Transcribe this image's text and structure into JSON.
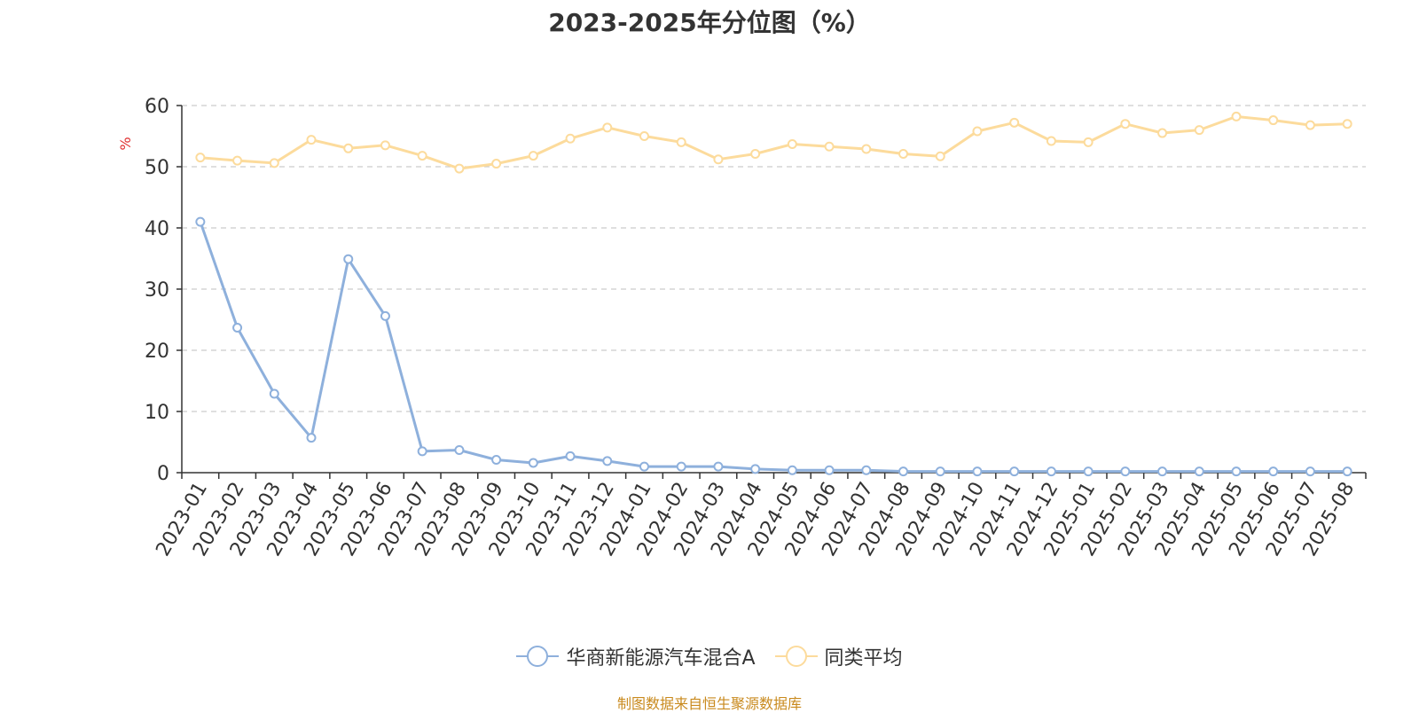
{
  "chart_data": {
    "type": "line",
    "title": "2023-2025年分位图（%）",
    "ylabel": "%",
    "ylim": [
      0,
      60
    ],
    "yticks": [
      0,
      10,
      20,
      30,
      40,
      50,
      60
    ],
    "grid": true,
    "legend_position": "bottom",
    "categories": [
      "2023-01",
      "2023-02",
      "2023-03",
      "2023-04",
      "2023-05",
      "2023-06",
      "2023-07",
      "2023-08",
      "2023-09",
      "2023-10",
      "2023-11",
      "2023-12",
      "2024-01",
      "2024-02",
      "2024-03",
      "2024-04",
      "2024-05",
      "2024-06",
      "2024-07",
      "2024-08",
      "2024-09",
      "2024-10",
      "2024-11",
      "2024-12",
      "2025-01",
      "2025-02",
      "2025-03",
      "2025-04",
      "2025-05",
      "2025-06",
      "2025-07",
      "2025-08"
    ],
    "series": [
      {
        "name": "华商新能源汽车混合A",
        "color": "#8eb0dc",
        "values": [
          41.0,
          23.7,
          12.9,
          5.7,
          34.9,
          25.6,
          3.5,
          3.7,
          2.1,
          1.6,
          2.7,
          1.9,
          1.0,
          1.0,
          1.0,
          0.6,
          0.4,
          0.4,
          0.4,
          0.2,
          0.2,
          0.2,
          0.2,
          0.2,
          0.2,
          0.2,
          0.2,
          0.2,
          0.2,
          0.2,
          0.2,
          0.2
        ]
      },
      {
        "name": "同类平均",
        "color": "#fcdb9c",
        "values": [
          51.5,
          51.0,
          50.6,
          54.4,
          53.0,
          53.5,
          51.8,
          49.7,
          50.5,
          51.8,
          54.6,
          56.4,
          55.0,
          54.0,
          51.2,
          52.1,
          53.7,
          53.3,
          52.9,
          52.1,
          51.7,
          55.8,
          57.2,
          54.2,
          54.0,
          57.0,
          55.5,
          56.0,
          58.2,
          57.6,
          56.8,
          57.0
        ]
      }
    ]
  },
  "source_text": "制图数据来自恒生聚源数据库"
}
